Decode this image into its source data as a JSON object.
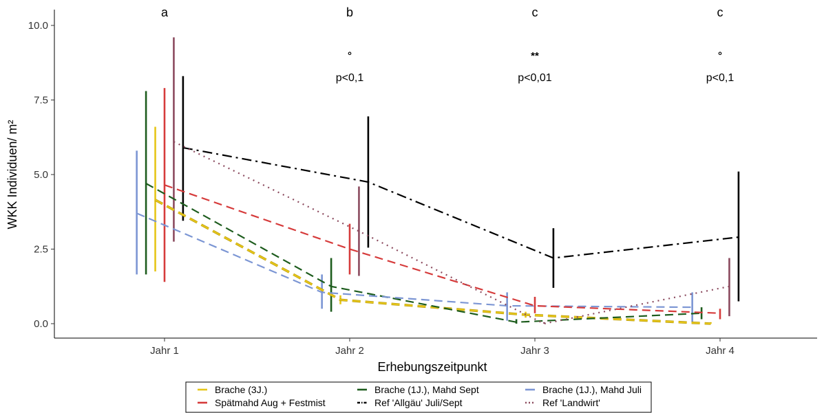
{
  "chart_data": {
    "type": "line",
    "xlabel": "Erhebungszeitpunkt",
    "ylabel": "WKK Individuen/ m²",
    "categories": [
      "Jahr 1",
      "Jahr 2",
      "Jahr 3",
      "Jahr 4"
    ],
    "ylim": [
      -0.5,
      10.5
    ],
    "yticks": [
      0.0,
      2.5,
      5.0,
      7.5,
      10.0
    ],
    "ytick_labels": [
      "0.0",
      "2.5",
      "5.0",
      "7.5",
      "10.0"
    ],
    "grid": false,
    "legend_position": "bottom",
    "annotations": [
      {
        "category": "Jahr 1",
        "letter": "a",
        "symbol": "",
        "p": ""
      },
      {
        "category": "Jahr 2",
        "letter": "b",
        "symbol": "°",
        "p": "p<0,1"
      },
      {
        "category": "Jahr 3",
        "letter": "c",
        "symbol": "**",
        "p": "p<0,01"
      },
      {
        "category": "Jahr 4",
        "letter": "c",
        "symbol": "°",
        "p": "p<0,1"
      }
    ],
    "series": [
      {
        "name": "Brache (3J.)",
        "color": "#e6c619",
        "dash": "long",
        "offset": -0.05,
        "values": [
          4.15,
          0.8,
          0.3,
          0.0
        ],
        "lower": [
          1.75,
          0.65,
          0.2,
          0.0
        ],
        "upper": [
          6.6,
          0.95,
          0.4,
          0.05
        ]
      },
      {
        "name": "Brache (1J.), Mahd Sept",
        "color": "#1d5c1d",
        "dash": "long",
        "offset": -0.1,
        "values": [
          4.7,
          1.25,
          0.05,
          0.35
        ],
        "lower": [
          1.65,
          0.4,
          0.0,
          0.15
        ],
        "upper": [
          7.8,
          2.2,
          0.15,
          0.55
        ]
      },
      {
        "name": "Brache (1J.), Mahd Juli",
        "color": "#7c96d4",
        "dash": "long",
        "offset": -0.15,
        "values": [
          3.7,
          1.05,
          0.6,
          0.55
        ],
        "lower": [
          1.65,
          0.5,
          0.1,
          0.05
        ],
        "upper": [
          5.8,
          1.65,
          1.05,
          1.05
        ]
      },
      {
        "name": "Spätmahd Aug + Festmist",
        "color": "#d63b3b",
        "dash": "long",
        "offset": 0.0,
        "values": [
          4.65,
          2.5,
          0.6,
          0.35
        ],
        "lower": [
          1.4,
          1.65,
          0.35,
          0.15
        ],
        "upper": [
          7.9,
          3.35,
          0.9,
          0.5
        ]
      },
      {
        "name": "Ref 'Allgäu' Juli/Sept",
        "color": "#000000",
        "dash": "dashdot",
        "offset": 0.1,
        "values": [
          5.9,
          4.75,
          2.2,
          2.9
        ],
        "lower": [
          3.45,
          2.55,
          1.2,
          0.75
        ],
        "upper": [
          8.3,
          6.95,
          3.2,
          5.1
        ]
      },
      {
        "name": "Ref 'Landwirt'",
        "color": "#8b4a5e",
        "dash": "dot",
        "offset": 0.05,
        "values": [
          6.1,
          3.1,
          0.0,
          1.25
        ],
        "lower": [
          2.75,
          1.6,
          0.0,
          0.25
        ],
        "upper": [
          9.6,
          4.6,
          0.05,
          2.2
        ]
      }
    ],
    "legend_order": [
      0,
      1,
      2,
      3,
      4,
      5
    ]
  }
}
